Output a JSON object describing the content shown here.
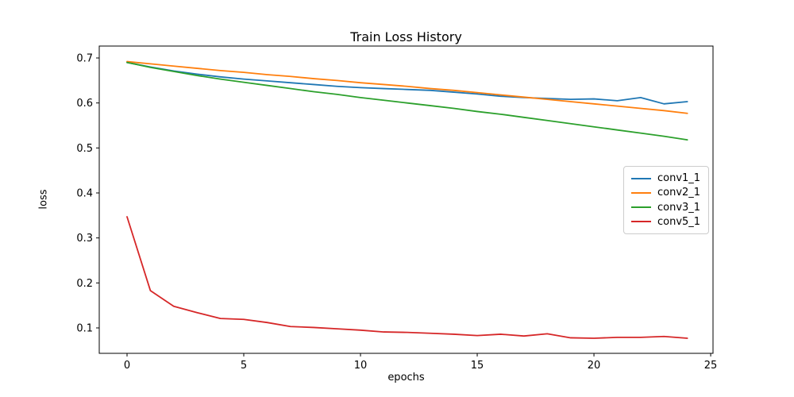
{
  "chart_data": {
    "type": "line",
    "title": "Train Loss History",
    "xlabel": "epochs",
    "ylabel": "loss",
    "x": [
      0,
      1,
      2,
      3,
      4,
      5,
      6,
      7,
      8,
      9,
      10,
      11,
      12,
      13,
      14,
      15,
      16,
      17,
      18,
      19,
      20,
      21,
      22,
      23,
      24
    ],
    "series": [
      {
        "name": "conv1_1",
        "color": "#1f77b4",
        "values": [
          0.69,
          0.68,
          0.671,
          0.664,
          0.658,
          0.653,
          0.649,
          0.645,
          0.641,
          0.637,
          0.634,
          0.632,
          0.63,
          0.628,
          0.624,
          0.62,
          0.615,
          0.612,
          0.61,
          0.608,
          0.609,
          0.605,
          0.612,
          0.598,
          0.603
        ]
      },
      {
        "name": "conv2_1",
        "color": "#ff7f0e",
        "values": [
          0.692,
          0.687,
          0.682,
          0.677,
          0.672,
          0.668,
          0.663,
          0.659,
          0.654,
          0.65,
          0.645,
          0.641,
          0.637,
          0.632,
          0.628,
          0.623,
          0.618,
          0.613,
          0.608,
          0.603,
          0.598,
          0.593,
          0.588,
          0.583,
          0.577
        ]
      },
      {
        "name": "conv3_1",
        "color": "#2ca02c",
        "values": [
          0.69,
          0.679,
          0.67,
          0.661,
          0.653,
          0.646,
          0.639,
          0.632,
          0.625,
          0.619,
          0.612,
          0.606,
          0.6,
          0.594,
          0.588,
          0.581,
          0.575,
          0.568,
          0.561,
          0.554,
          0.547,
          0.54,
          0.533,
          0.526,
          0.518
        ]
      },
      {
        "name": "conv5_1",
        "color": "#d62728",
        "values": [
          0.347,
          0.183,
          0.148,
          0.134,
          0.121,
          0.119,
          0.112,
          0.103,
          0.101,
          0.098,
          0.095,
          0.091,
          0.09,
          0.088,
          0.086,
          0.083,
          0.086,
          0.082,
          0.087,
          0.078,
          0.077,
          0.079,
          0.079,
          0.081,
          0.077
        ]
      }
    ],
    "xticks": [
      0,
      5,
      10,
      15,
      20,
      25
    ],
    "yticks": [
      0.1,
      0.2,
      0.3,
      0.4,
      0.5,
      0.6,
      0.7
    ],
    "xlim": [
      -1.19,
      25.1
    ],
    "ylim": [
      0.0435,
      0.7265
    ],
    "grid": false,
    "legend_position": "center right",
    "axis_color": "#000000",
    "text_color": "#000000",
    "background": "#ffffff",
    "line_width": 1.8
  }
}
